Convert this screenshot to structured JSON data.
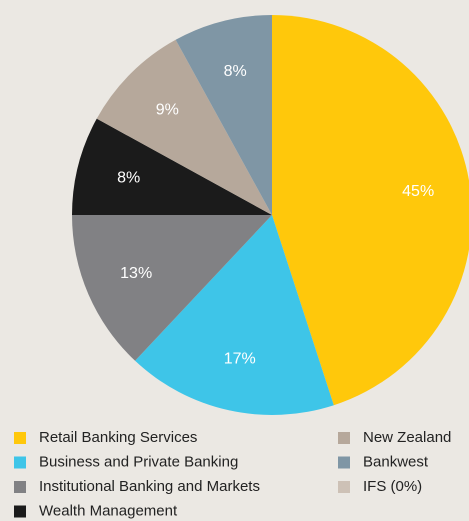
{
  "chart_data": {
    "type": "pie",
    "categories": [
      "Retail Banking Services",
      "Business and Private Banking",
      "Institutional Banking and Markets",
      "Wealth Management",
      "New Zealand",
      "Bankwest",
      "IFS (0%)"
    ],
    "values": [
      45,
      17,
      13,
      8,
      9,
      8,
      0
    ],
    "value_labels": [
      "45%",
      "17%",
      "13%",
      "8%",
      "9%",
      "8%",
      null
    ],
    "colors": [
      "#ffc80b",
      "#3ec5e8",
      "#818184",
      "#1b1b1b",
      "#b6a89b",
      "#7f96a5",
      "#cdc1b6"
    ]
  }
}
